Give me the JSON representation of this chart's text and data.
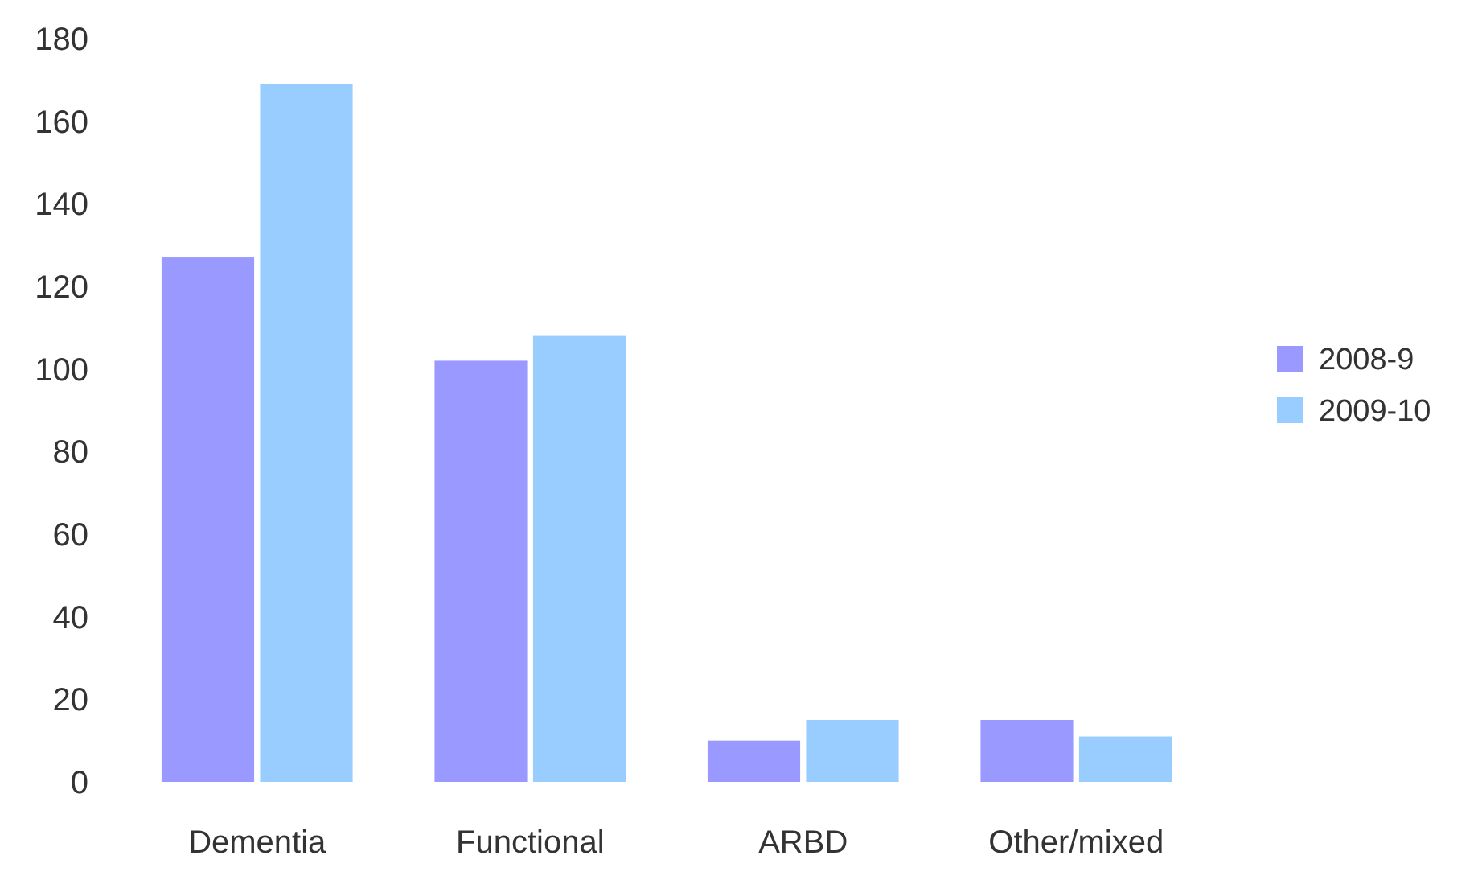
{
  "chart_data": {
    "type": "bar",
    "categories": [
      "Dementia",
      "Functional",
      "ARBD",
      "Other/mixed"
    ],
    "series": [
      {
        "name": "2008-9",
        "color": "#9999ff",
        "values": [
          127,
          102,
          10,
          15
        ]
      },
      {
        "name": "2009-10",
        "color": "#99ccff",
        "values": [
          169,
          108,
          15,
          11
        ]
      }
    ],
    "ylim": [
      0,
      180
    ],
    "yticks": [
      0,
      20,
      40,
      60,
      80,
      100,
      120,
      140,
      160,
      180
    ],
    "grid": false,
    "legend": "right"
  }
}
